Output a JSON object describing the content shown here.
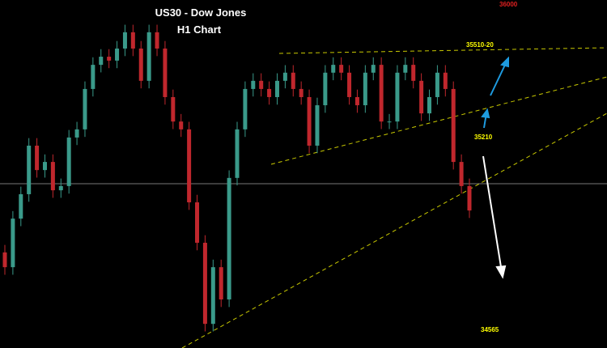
{
  "chart_data": {
    "type": "candlestick",
    "title": "US30 - Dow Jones",
    "subtitle": "H1 Chart",
    "annotations": [
      {
        "text": "36000",
        "color": "#e02020"
      },
      {
        "text": "35510-20",
        "color": "#ffff00"
      },
      {
        "text": "35210",
        "color": "#ffff00"
      },
      {
        "text": "34565",
        "color": "#ffff00"
      }
    ],
    "up_color": "#3a9a8a",
    "down_color": "#c0272d",
    "ylim": [
      34533,
      35687
    ],
    "open": [
      34850,
      34801,
      34962,
      35043,
      35204,
      35123,
      35150,
      35056,
      35070,
      35231,
      35258,
      35392,
      35472,
      35499,
      35486,
      35526,
      35580,
      35526,
      35419,
      35580,
      35526,
      35365,
      35284,
      35258,
      35016,
      34882,
      34613,
      34801,
      34694,
      35097,
      35258,
      35392,
      35419,
      35392,
      35365,
      35419,
      35446,
      35392,
      35365,
      35204,
      35338,
      35446,
      35472,
      35446,
      35365,
      35338,
      35446,
      35472,
      35284,
      35284,
      35446,
      35472,
      35419,
      35311,
      35365,
      35446,
      35392,
      35150,
      35070
    ],
    "high": [
      34875,
      34987,
      35068,
      35229,
      35229,
      35175,
      35175,
      35095,
      35256,
      35283,
      35417,
      35497,
      35524,
      35524,
      35551,
      35605,
      35605,
      35551,
      35605,
      35605,
      35551,
      35390,
      35309,
      35283,
      35041,
      34907,
      34826,
      34826,
      35122,
      35283,
      35417,
      35444,
      35444,
      35417,
      35444,
      35471,
      35471,
      35417,
      35390,
      35363,
      35471,
      35497,
      35497,
      35471,
      35390,
      35471,
      35497,
      35497,
      35309,
      35471,
      35497,
      35497,
      35444,
      35390,
      35471,
      35471,
      35417,
      35175,
      35095
    ],
    "low": [
      34776,
      34776,
      34937,
      35018,
      35098,
      35098,
      35031,
      35031,
      35045,
      35206,
      35233,
      35367,
      35447,
      35461,
      35461,
      35501,
      35501,
      35394,
      35394,
      35501,
      35340,
      35259,
      35233,
      34991,
      34857,
      34588,
      34588,
      34669,
      34669,
      35072,
      35233,
      35367,
      35367,
      35340,
      35340,
      35394,
      35367,
      35340,
      35179,
      35179,
      35313,
      35421,
      35421,
      35340,
      35313,
      35313,
      35421,
      35259,
      35259,
      35259,
      35421,
      35394,
      35286,
      35286,
      35340,
      35367,
      35125,
      35045,
      34964
    ],
    "close": [
      34801,
      34962,
      35043,
      35204,
      35123,
      35150,
      35056,
      35070,
      35231,
      35258,
      35392,
      35472,
      35499,
      35486,
      35526,
      35580,
      35526,
      35419,
      35580,
      35526,
      35365,
      35284,
      35258,
      35016,
      34882,
      34613,
      34801,
      34694,
      35097,
      35258,
      35392,
      35419,
      35392,
      35365,
      35419,
      35446,
      35392,
      35365,
      35204,
      35338,
      35446,
      35472,
      35446,
      35365,
      35338,
      35446,
      35472,
      35284,
      35284,
      35446,
      35472,
      35419,
      35311,
      35365,
      35446,
      35392,
      35150,
      35070,
      34989
    ]
  }
}
